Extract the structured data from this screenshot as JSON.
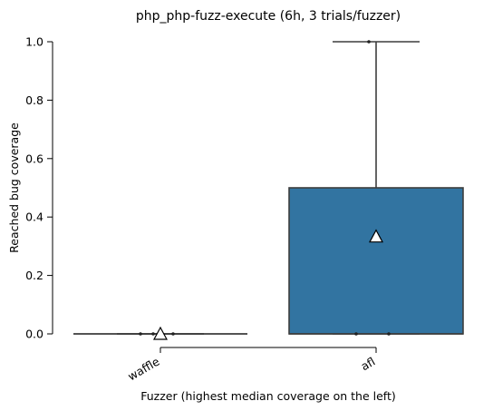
{
  "chart_data": {
    "type": "box",
    "title": "php_php-fuzz-execute (6h, 3 trials/fuzzer)",
    "xlabel": "Fuzzer (highest median coverage on the left)",
    "ylabel": "Reached bug coverage",
    "ylim": [
      0,
      1
    ],
    "yticks": [
      "0.0",
      "0.2",
      "0.4",
      "0.6",
      "0.8",
      "1.0"
    ],
    "categories": [
      "waffle",
      "afl"
    ],
    "boxes": [
      {
        "name": "waffle",
        "min": 0,
        "q1": 0,
        "median": 0,
        "q3": 0,
        "max": 0,
        "mean": 0,
        "points": [
          0,
          0,
          0
        ],
        "color": "#ffffff"
      },
      {
        "name": "afl",
        "min": 0,
        "q1": 0,
        "median": 0,
        "q3": 0.5,
        "max": 1.0,
        "mean": 0.3333,
        "points": [
          0,
          0,
          1.0
        ],
        "color": "#3274a1"
      }
    ],
    "grid": false,
    "legend": "none"
  }
}
